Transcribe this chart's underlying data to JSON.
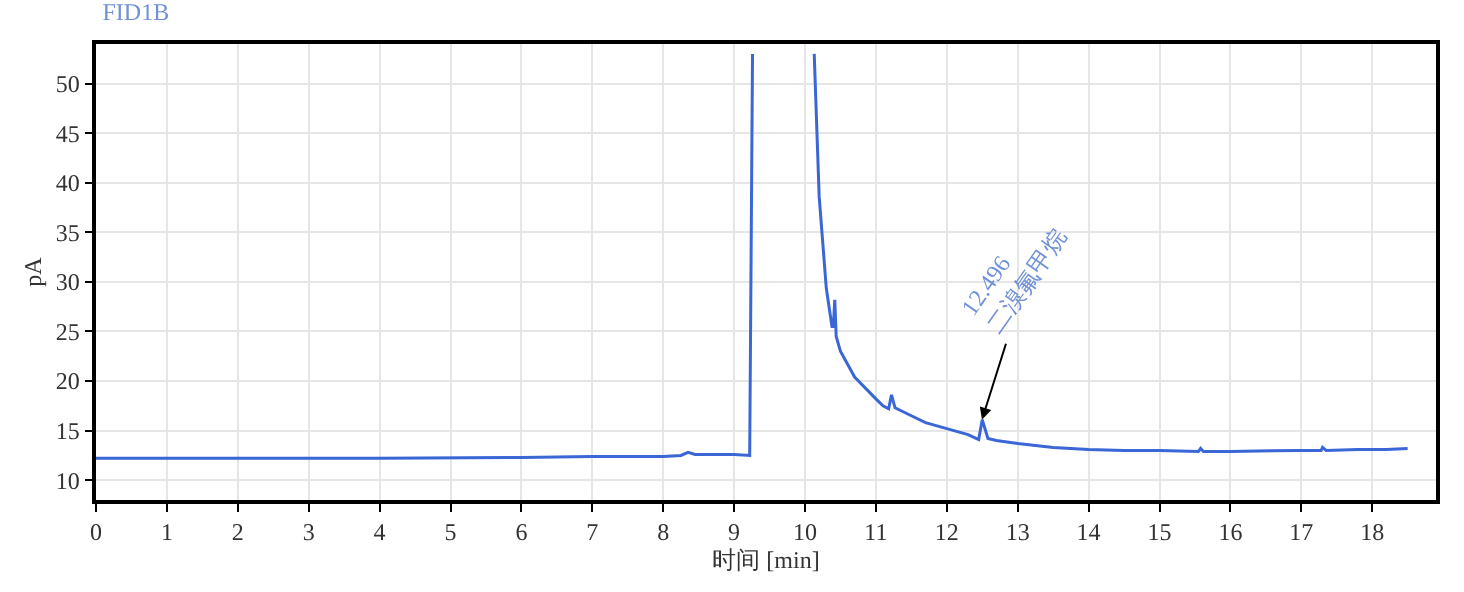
{
  "chart_data": {
    "type": "line",
    "title": "FID1B",
    "xlabel": "时间 [min]",
    "ylabel": "pA",
    "xlim": [
      0,
      18.9
    ],
    "xticks": [
      0,
      1,
      2,
      3,
      4,
      5,
      6,
      7,
      8,
      9,
      10,
      11,
      12,
      13,
      14,
      15,
      16,
      17,
      18
    ],
    "ylim": [
      8,
      54
    ],
    "yticks": [
      10,
      15,
      20,
      25,
      30,
      35,
      40,
      45,
      50
    ],
    "grid": true,
    "marker": "none",
    "line_style": "solid",
    "series": [
      {
        "color": "#3a66d6",
        "x": [
          0,
          4,
          6,
          7,
          8,
          8.25,
          8.35,
          8.45,
          9.0,
          9.22,
          9.26,
          9.27,
          10.12,
          10.13,
          10.2,
          10.3,
          10.38,
          10.4,
          10.42,
          10.44,
          10.5,
          10.7,
          11.0,
          11.1,
          11.18,
          11.22,
          11.27,
          11.5,
          11.7,
          12.0,
          12.3,
          12.45,
          12.5,
          12.58,
          12.7,
          13.0,
          13.5,
          14.0,
          14.5,
          15.0,
          15.55,
          15.58,
          15.62,
          16.0,
          17.0,
          17.28,
          17.3,
          17.35,
          17.8,
          18.2,
          18.5
        ],
        "values": [
          12.2,
          12.2,
          12.3,
          12.4,
          12.4,
          12.5,
          12.8,
          12.6,
          12.6,
          12.5,
          53,
          null,
          null,
          53,
          38.6,
          29.4,
          25.5,
          25.5,
          28.2,
          24.5,
          23,
          20.4,
          18.2,
          17.5,
          17.2,
          18.6,
          17.3,
          16.5,
          15.8,
          15.2,
          14.6,
          14.1,
          16.1,
          14.2,
          14.0,
          13.7,
          13.3,
          13.1,
          13.0,
          13.0,
          12.9,
          13.2,
          12.9,
          12.9,
          13.0,
          13.0,
          13.3,
          13.0,
          13.1,
          13.1,
          13.2
        ]
      }
    ],
    "annotations": [
      {
        "text": "12.496\n二溴氟甲烷",
        "x": 12.496,
        "y": 16.1
      }
    ]
  }
}
